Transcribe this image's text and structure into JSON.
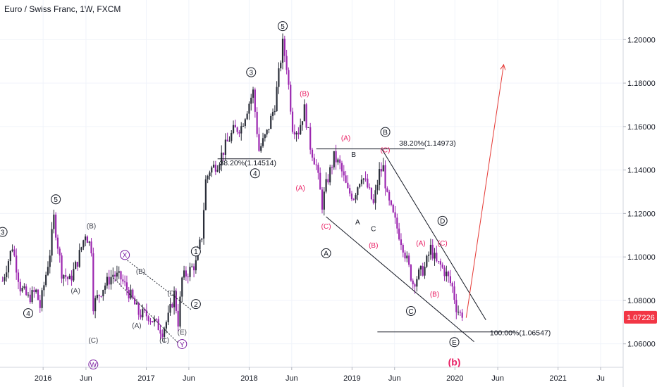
{
  "chart_title": "Euro / Swiss Franc, 1W, FXCM",
  "colors": {
    "up": "#2a2e39",
    "down": "#9c27b0",
    "grid": "#f0f3fa",
    "black": "#131722",
    "red": "#e91e63",
    "purple": "#7b1fa2",
    "price_badge": "#f23645",
    "arrow": "#e53935"
  },
  "chart_data": {
    "type": "candlestick",
    "title": "Euro / Swiss Franc, 1W, FXCM",
    "x_ticks": [
      "2016",
      "Jun",
      "2017",
      "Jun",
      "2018",
      "Jun",
      "2019",
      "Jun",
      "2020",
      "Jun",
      "2021",
      "Ju"
    ],
    "y_ticks": [
      "1.20000",
      "1.18000",
      "1.16000",
      "1.14000",
      "1.12000",
      "1.10000",
      "1.08000",
      "1.06000"
    ],
    "ylim": [
      1.045,
      1.215
    ],
    "xlim": [
      "2015-08-01",
      "2021-08-20"
    ],
    "last_price": "1.07226",
    "price_path": [
      [
        "2015-08-10",
        1.089
      ],
      [
        "2015-09-14",
        1.105
      ],
      [
        "2015-10-12",
        1.086
      ],
      [
        "2015-11-09",
        1.081
      ],
      [
        "2015-12-07",
        1.084
      ],
      [
        "2015-12-21",
        1.077
      ],
      [
        "2016-01-25",
        1.102
      ],
      [
        "2016-02-08",
        1.118
      ],
      [
        "2016-03-07",
        1.093
      ],
      [
        "2016-04-04",
        1.089
      ],
      [
        "2016-05-02",
        1.098
      ],
      [
        "2016-05-30",
        1.111
      ],
      [
        "2016-06-20",
        1.104
      ],
      [
        "2016-06-27",
        1.078
      ],
      [
        "2016-08-01",
        1.086
      ],
      [
        "2016-09-05",
        1.092
      ],
      [
        "2016-10-03",
        1.09
      ],
      [
        "2016-11-07",
        1.082
      ],
      [
        "2016-12-05",
        1.074
      ],
      [
        "2017-01-09",
        1.073
      ],
      [
        "2017-02-06",
        1.069
      ],
      [
        "2017-02-27",
        1.066
      ],
      [
        "2017-03-20",
        1.072
      ],
      [
        "2017-04-10",
        1.083
      ],
      [
        "2017-04-24",
        1.07
      ],
      [
        "2017-05-08",
        1.09
      ],
      [
        "2017-06-05",
        1.094
      ],
      [
        "2017-06-26",
        1.097
      ],
      [
        "2017-07-17",
        1.11
      ],
      [
        "2017-07-31",
        1.135
      ],
      [
        "2017-08-14",
        1.14
      ],
      [
        "2017-09-11",
        1.143
      ],
      [
        "2017-10-09",
        1.151
      ],
      [
        "2017-11-06",
        1.158
      ],
      [
        "2017-12-04",
        1.16
      ],
      [
        "2018-01-01",
        1.171
      ],
      [
        "2018-01-15",
        1.176
      ],
      [
        "2018-02-05",
        1.149
      ],
      [
        "2018-03-05",
        1.157
      ],
      [
        "2018-04-02",
        1.17
      ],
      [
        "2018-04-30",
        1.198
      ],
      [
        "2018-05-14",
        1.188
      ],
      [
        "2018-06-04",
        1.16
      ],
      [
        "2018-06-25",
        1.158
      ],
      [
        "2018-07-16",
        1.168
      ],
      [
        "2018-08-06",
        1.151
      ],
      [
        "2018-08-27",
        1.142
      ],
      [
        "2018-09-17",
        1.124
      ],
      [
        "2018-10-01",
        1.133
      ],
      [
        "2018-10-29",
        1.146
      ],
      [
        "2018-11-19",
        1.142
      ],
      [
        "2018-12-17",
        1.13
      ],
      [
        "2019-01-07",
        1.128
      ],
      [
        "2019-02-04",
        1.138
      ],
      [
        "2019-02-25",
        1.132
      ],
      [
        "2019-03-18",
        1.124
      ],
      [
        "2019-04-08",
        1.139
      ],
      [
        "2019-04-22",
        1.141
      ],
      [
        "2019-05-06",
        1.127
      ],
      [
        "2019-06-03",
        1.116
      ],
      [
        "2019-07-01",
        1.105
      ],
      [
        "2019-08-05",
        1.088
      ],
      [
        "2019-08-26",
        1.092
      ],
      [
        "2019-09-16",
        1.095
      ],
      [
        "2019-10-07",
        1.104
      ],
      [
        "2019-10-28",
        1.097
      ],
      [
        "2019-11-11",
        1.096
      ],
      [
        "2019-12-02",
        1.092
      ],
      [
        "2019-12-23",
        1.086
      ],
      [
        "2020-01-06",
        1.077
      ],
      [
        "2020-01-27",
        1.072
      ]
    ],
    "annotations": [
      {
        "text": "3",
        "style": "circle",
        "color": "black",
        "date": "2015-08-10",
        "price": 1.1115
      },
      {
        "text": "5",
        "style": "circle",
        "color": "black",
        "date": "2016-02-15",
        "price": 1.1265
      },
      {
        "text": "4",
        "style": "circle",
        "color": "black",
        "date": "2015-11-09",
        "price": 1.0741
      },
      {
        "text": "(B)",
        "style": "text",
        "color": "gray",
        "date": "2016-06-20",
        "price": 1.1145
      },
      {
        "text": "(A)",
        "style": "text",
        "color": "gray",
        "date": "2016-04-25",
        "price": 1.0846
      },
      {
        "text": "(C)",
        "style": "text",
        "color": "gray",
        "date": "2016-06-27",
        "price": 1.0618
      },
      {
        "text": "W",
        "style": "circle",
        "color": "purple",
        "date": "2016-06-27",
        "price": 1.0505
      },
      {
        "text": "X",
        "style": "circle",
        "color": "purple",
        "date": "2016-10-17",
        "price": 1.1009
      },
      {
        "text": "(B)",
        "style": "text",
        "color": "gray",
        "date": "2016-12-12",
        "price": 1.0936
      },
      {
        "text": "(A)",
        "style": "text",
        "color": "gray",
        "date": "2016-11-28",
        "price": 1.0686
      },
      {
        "text": "(C)",
        "style": "text",
        "color": "gray",
        "date": "2017-03-06",
        "price": 1.0618
      },
      {
        "text": "(D)",
        "style": "text",
        "color": "gray",
        "date": "2017-04-03",
        "price": 1.0836
      },
      {
        "text": "(E)",
        "style": "text",
        "color": "gray",
        "date": "2017-05-08",
        "price": 1.0656
      },
      {
        "text": "Y",
        "style": "circle",
        "color": "purple",
        "date": "2017-05-08",
        "price": 1.0599
      },
      {
        "text": "1",
        "style": "circle",
        "color": "black",
        "date": "2017-06-26",
        "price": 1.1025
      },
      {
        "text": "2",
        "style": "circle",
        "color": "black",
        "date": "2017-06-26",
        "price": 1.0783
      },
      {
        "text": "3",
        "style": "circle",
        "color": "black",
        "date": "2018-01-08",
        "price": 1.185
      },
      {
        "text": "4",
        "style": "circle",
        "color": "black",
        "date": "2018-01-22",
        "price": 1.1385
      },
      {
        "text": "5",
        "style": "circle",
        "color": "black",
        "date": "2018-04-30",
        "price": 1.2062
      },
      {
        "text": "(B)",
        "style": "text",
        "color": "red",
        "date": "2018-07-16",
        "price": 1.1754
      },
      {
        "text": "(A)",
        "style": "text",
        "color": "red",
        "date": "2018-07-02",
        "price": 1.132
      },
      {
        "text": "(A)",
        "style": "text",
        "color": "red",
        "date": "2018-12-10",
        "price": 1.155
      },
      {
        "text": "(C)",
        "style": "text",
        "color": "red",
        "date": "2018-10-01",
        "price": 1.1143
      },
      {
        "text": "A",
        "style": "circle",
        "color": "black",
        "date": "2018-10-01",
        "price": 1.1017
      },
      {
        "text": "A",
        "style": "text",
        "color": "black",
        "date": "2019-01-21",
        "price": 1.1163
      },
      {
        "text": "C",
        "style": "text",
        "color": "black",
        "date": "2019-03-18",
        "price": 1.1131
      },
      {
        "text": "(B)",
        "style": "text",
        "color": "red",
        "date": "2019-03-18",
        "price": 1.1055
      },
      {
        "text": "B",
        "style": "circle",
        "color": "black",
        "date": "2019-04-29",
        "price": 1.1575
      },
      {
        "text": "(C)",
        "style": "text",
        "color": "red",
        "date": "2019-04-29",
        "price": 1.1495
      },
      {
        "text": "B",
        "style": "text",
        "color": "black",
        "date": "2019-01-07",
        "price": 1.1474
      },
      {
        "text": "C",
        "style": "circle",
        "color": "black",
        "date": "2019-07-29",
        "price": 1.0751
      },
      {
        "text": "(A)",
        "style": "text",
        "color": "red",
        "date": "2019-09-02",
        "price": 1.1066
      },
      {
        "text": "(B)",
        "style": "text",
        "color": "red",
        "date": "2019-10-21",
        "price": 1.0831
      },
      {
        "text": "D",
        "style": "circle",
        "color": "black",
        "date": "2019-11-18",
        "price": 1.1166
      },
      {
        "text": "(C)",
        "style": "text",
        "color": "red",
        "date": "2019-11-18",
        "price": 1.1066
      },
      {
        "text": "E",
        "style": "circle",
        "color": "black",
        "date": "2019-12-30",
        "price": 1.0608
      },
      {
        "text": "(b)",
        "style": "bold",
        "color": "red",
        "date": "2019-12-30",
        "price": 1.0517
      }
    ],
    "fib_labels": [
      "38.20%(1.14514)",
      "38.20%(1.14973)",
      "100.00%(1.06547)"
    ]
  }
}
